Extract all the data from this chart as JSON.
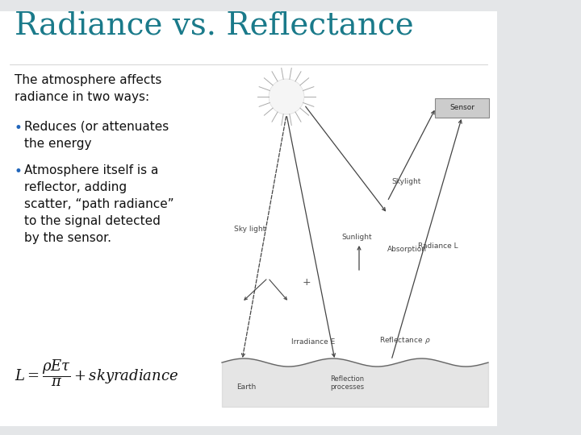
{
  "title": "Radiance vs. Reflectance",
  "title_color": "#1a7a8a",
  "title_fontsize": 28,
  "bg_color_left": "#e8eaec",
  "bg_color_right": "#ffffff",
  "slide_white_bg": "#ffffff",
  "teal_bar_color": "#1a6e82",
  "blue_accent_color": "#2255cc",
  "dark_teal_bottom": "#1a4a5a",
  "body_text_intro": "The atmosphere affects\nradiance in two ways:",
  "bullet1": "Reduces (or attenuates\nthe energy",
  "bullet2": "Atmosphere itself is a\nreflector, adding\nscatter, “path radiance”\nto the signal detected\nby the sensor.",
  "bullet_color": "#2266bb",
  "body_fontsize": 11,
  "formula_fontsize": 12,
  "diagram_border": "#cccccc",
  "arrow_color": "#444444",
  "diagram_text_color": "#444444"
}
